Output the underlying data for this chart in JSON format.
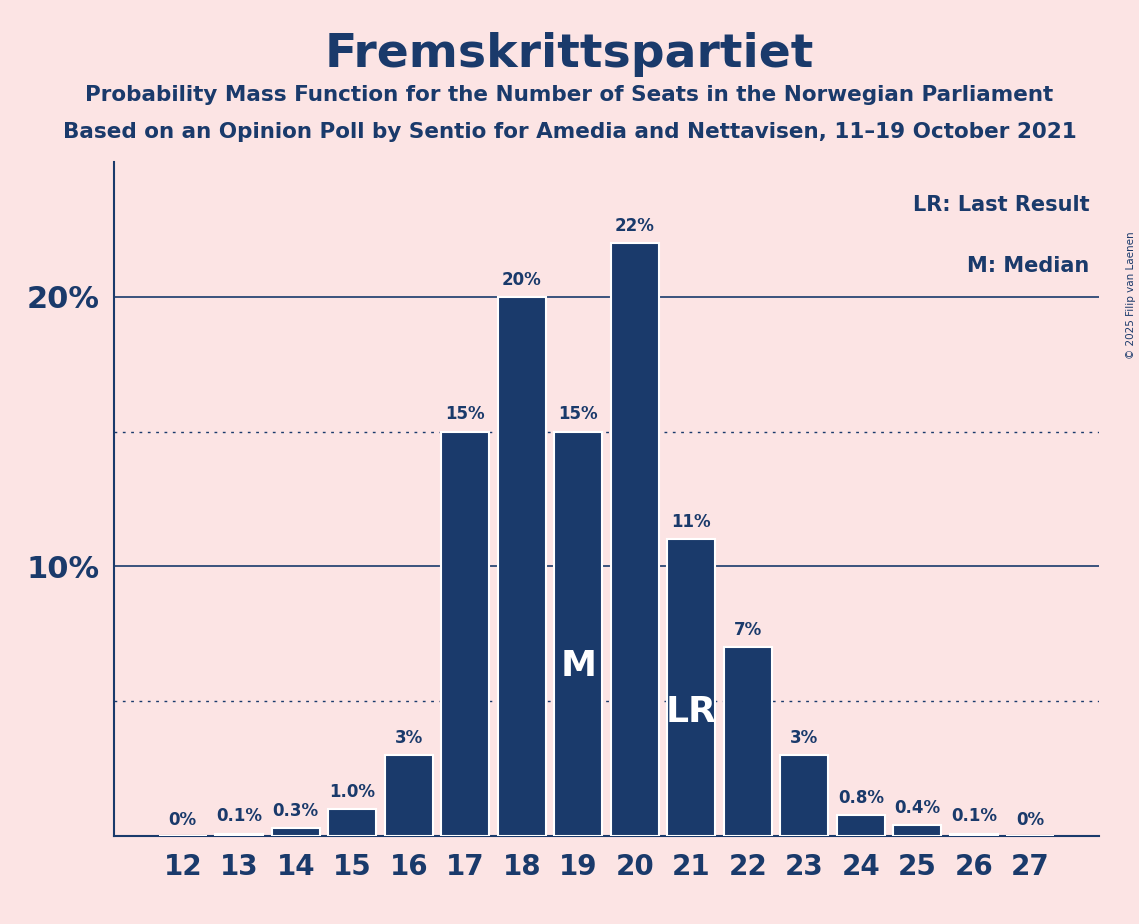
{
  "title": "Fremskrittspartiet",
  "subtitle1": "Probability Mass Function for the Number of Seats in the Norwegian Parliament",
  "subtitle2": "Based on an Opinion Poll by Sentio for Amedia and Nettavisen, 11–19 October 2021",
  "copyright": "© 2025 Filip van Laenen",
  "seats": [
    12,
    13,
    14,
    15,
    16,
    17,
    18,
    19,
    20,
    21,
    22,
    23,
    24,
    25,
    26,
    27
  ],
  "probabilities": [
    0.0,
    0.1,
    0.3,
    1.0,
    3.0,
    15.0,
    20.0,
    15.0,
    22.0,
    11.0,
    7.0,
    3.0,
    0.8,
    0.4,
    0.1,
    0.0
  ],
  "bar_color": "#1a3a6b",
  "background_color": "#fce4e4",
  "text_color": "#1a3a6b",
  "median_seat": 19,
  "last_result_seat": 21,
  "legend_lr": "LR: Last Result",
  "legend_m": "M: Median",
  "ylim": [
    0,
    25
  ],
  "solid_hlines": [
    10.0,
    20.0
  ],
  "dotted_hlines": [
    5.0,
    15.0
  ],
  "bar_width": 0.85,
  "label_formats": {
    "0.0": "0%",
    "0.1": "0.1%",
    "0.3": "0.3%",
    "1.0": "1.0%",
    "3.0": "3%",
    "7.0": "7%",
    "11.0": "11%",
    "15.0": "15%",
    "20.0": "20%",
    "22.0": "22%",
    "0.8": "0.8%",
    "0.4": "0.4%"
  }
}
